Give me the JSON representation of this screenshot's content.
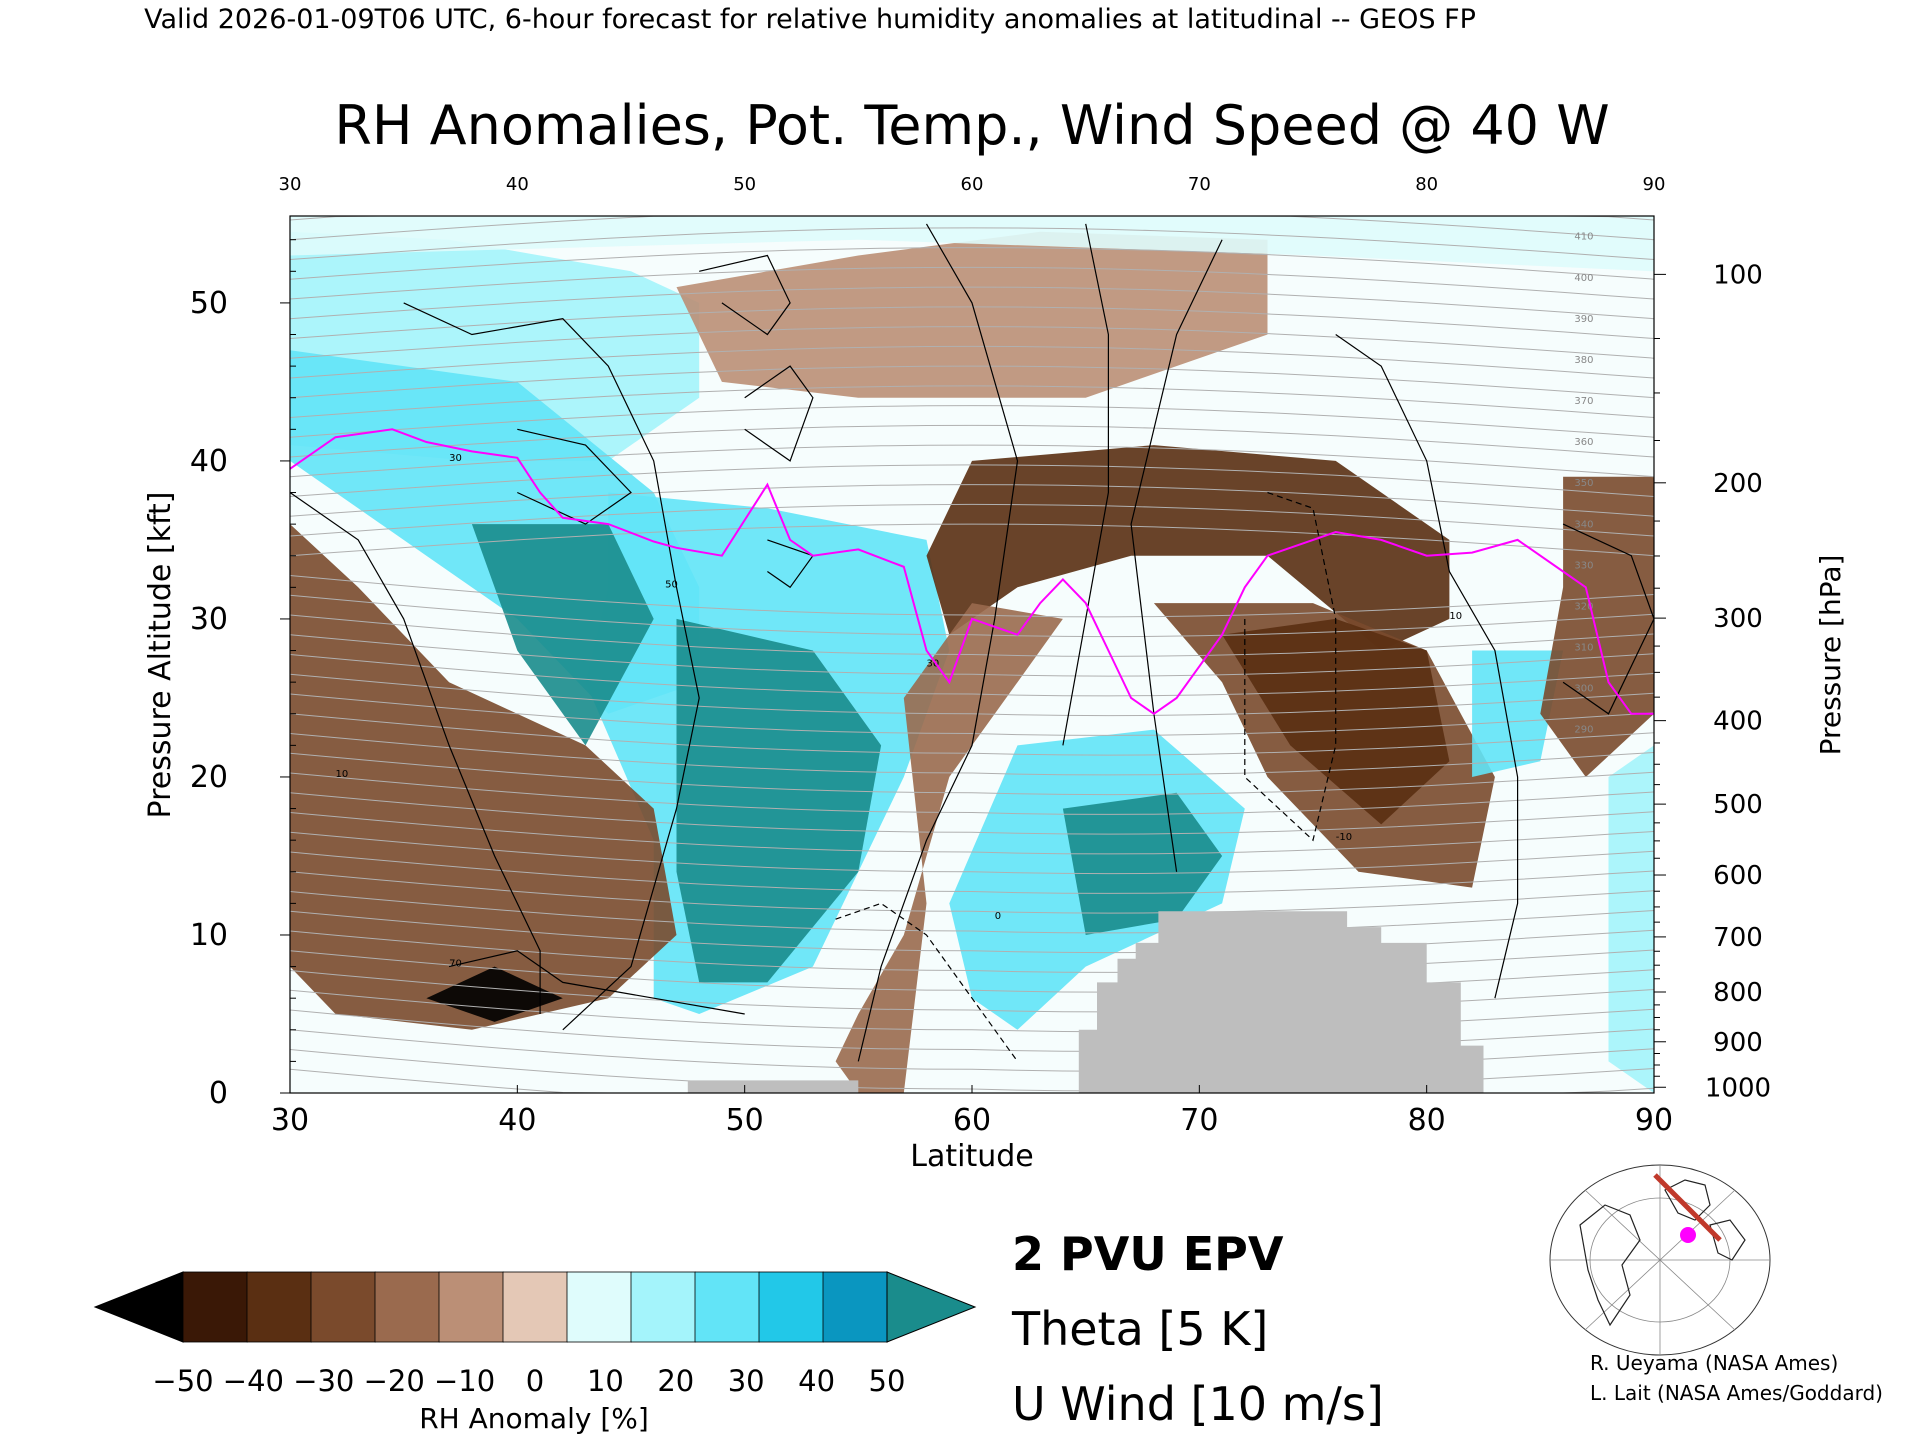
{
  "header": "Valid 2026-01-09T06 UTC, 6-hour forecast for relative humidity anomalies at latitudinal -- GEOS FP",
  "title": "RH Anomalies, Pot. Temp., Wind Speed @ 40 W",
  "xlabel": "Latitude",
  "ylabel_left": "Pressure Altitude [kft]",
  "ylabel_right": "Pressure [hPa]",
  "colorbar_label": "RH Anomaly [%]",
  "legend": {
    "epv": "2 PVU EPV",
    "theta": "Theta [5 K]",
    "uwind": "U Wind [10 m/s]"
  },
  "credits": [
    "R. Ueyama (NASA Ames)",
    "L. Lait (NASA Ames/Goddard)"
  ],
  "colors": {
    "epv": "#ff00ff",
    "theta": "#b0b0b0",
    "terrain": "#bebebe",
    "overflow_high": "#1a8c8c",
    "overflow_low": "#000000"
  },
  "chart_data": {
    "type": "heatmap",
    "title": "RH Anomalies, Pot. Temp., Wind Speed @ 40 W",
    "xlabel": "Latitude",
    "ylabel": "Pressure Altitude [kft]",
    "x_range": [
      30,
      90
    ],
    "y_range": [
      0,
      55.5
    ],
    "x_ticks": [
      30,
      40,
      50,
      60,
      70,
      80,
      90
    ],
    "y_ticks": [
      0,
      10,
      20,
      30,
      40,
      50
    ],
    "pressure_ticks": [
      100,
      200,
      300,
      400,
      500,
      600,
      700,
      800,
      900,
      1000
    ],
    "colorbar": {
      "ticks": [
        -50,
        -40,
        -30,
        -20,
        -10,
        0,
        10,
        20,
        30,
        40,
        50
      ],
      "colors": [
        "#3a1806",
        "#5a2f12",
        "#7a4a2c",
        "#9a6a4e",
        "#bb8f76",
        "#e4c8b6",
        "#dffcfc",
        "#a4f4fb",
        "#62e4f7",
        "#22c8e8",
        "#0a96c0"
      ]
    },
    "rh_regions": [
      {
        "anomaly": 20,
        "poly": [
          [
            30,
            54.5
          ],
          [
            37,
            54
          ],
          [
            45,
            52
          ],
          [
            48,
            50
          ],
          [
            48,
            44
          ],
          [
            44,
            40
          ],
          [
            38,
            40
          ],
          [
            30,
            41
          ]
        ]
      },
      {
        "anomaly": -10,
        "poly": [
          [
            47,
            51
          ],
          [
            55,
            53
          ],
          [
            63,
            54.5
          ],
          [
            73,
            54
          ],
          [
            73,
            48
          ],
          [
            65,
            44
          ],
          [
            55,
            44
          ],
          [
            49,
            45
          ]
        ]
      },
      {
        "anomaly": 10,
        "poly": [
          [
            30,
            55.5
          ],
          [
            90,
            55.5
          ],
          [
            90,
            52
          ],
          [
            75,
            53
          ],
          [
            55,
            54
          ],
          [
            30,
            53
          ]
        ]
      },
      {
        "anomaly": 30,
        "poly": [
          [
            30,
            47
          ],
          [
            40,
            45
          ],
          [
            46,
            38
          ],
          [
            48,
            32
          ],
          [
            48,
            26
          ],
          [
            44,
            24
          ],
          [
            40,
            30
          ],
          [
            36,
            34
          ],
          [
            32,
            38
          ],
          [
            30,
            40
          ]
        ]
      },
      {
        "anomaly": 30,
        "poly": [
          [
            44,
            38
          ],
          [
            51,
            37
          ],
          [
            58,
            35
          ],
          [
            59,
            28
          ],
          [
            57,
            20
          ],
          [
            53,
            8
          ],
          [
            48,
            5
          ],
          [
            46,
            6
          ],
          [
            46,
            16
          ],
          [
            43,
            26
          ],
          [
            44,
            32
          ]
        ]
      },
      {
        "anomaly": 50,
        "poly": [
          [
            38,
            36
          ],
          [
            44,
            36
          ],
          [
            46,
            30
          ],
          [
            43,
            22
          ],
          [
            40,
            28
          ]
        ]
      },
      {
        "anomaly": 50,
        "poly": [
          [
            47,
            30
          ],
          [
            53,
            28
          ],
          [
            56,
            22
          ],
          [
            55,
            14
          ],
          [
            51,
            7
          ],
          [
            48,
            7
          ],
          [
            47,
            14
          ]
        ]
      },
      {
        "anomaly": -40,
        "poly": [
          [
            60,
            40
          ],
          [
            68,
            41
          ],
          [
            76,
            40
          ],
          [
            81,
            35
          ],
          [
            81,
            30
          ],
          [
            78,
            28
          ],
          [
            73,
            34
          ],
          [
            67,
            34
          ],
          [
            62,
            32
          ],
          [
            59,
            29
          ],
          [
            58,
            34
          ]
        ]
      },
      {
        "anomaly": -30,
        "poly": [
          [
            68,
            31
          ],
          [
            71,
            26
          ],
          [
            73,
            20
          ],
          [
            77,
            14
          ],
          [
            82,
            13
          ],
          [
            83,
            20
          ],
          [
            80,
            28
          ],
          [
            75,
            31
          ]
        ]
      },
      {
        "anomaly": -40,
        "poly": [
          [
            71,
            29
          ],
          [
            74,
            22
          ],
          [
            78,
            17
          ],
          [
            81,
            21
          ],
          [
            80,
            28
          ],
          [
            76,
            30
          ]
        ]
      },
      {
        "anomaly": -20,
        "poly": [
          [
            57,
            25
          ],
          [
            60,
            31
          ],
          [
            64,
            30
          ],
          [
            62,
            26
          ],
          [
            59,
            20
          ],
          [
            57,
            10
          ],
          [
            55,
            5
          ],
          [
            54,
            2
          ],
          [
            55,
            0
          ],
          [
            57,
            0
          ],
          [
            58,
            12
          ]
        ]
      },
      {
        "anomaly": -30,
        "poly": [
          [
            30,
            36
          ],
          [
            33,
            32
          ],
          [
            37,
            26
          ],
          [
            43,
            22
          ],
          [
            46,
            18
          ],
          [
            47,
            10
          ],
          [
            44,
            6
          ],
          [
            38,
            4
          ],
          [
            32,
            5
          ],
          [
            30,
            8
          ]
        ]
      },
      {
        "anomaly": -50,
        "poly": [
          [
            36,
            6
          ],
          [
            39,
            8
          ],
          [
            42,
            6
          ],
          [
            39,
            4.5
          ]
        ]
      },
      {
        "anomaly": 30,
        "poly": [
          [
            62,
            22
          ],
          [
            68,
            23
          ],
          [
            72,
            18
          ],
          [
            71,
            12
          ],
          [
            65,
            8
          ],
          [
            62,
            4
          ],
          [
            60,
            6
          ],
          [
            59,
            12
          ]
        ]
      },
      {
        "anomaly": 50,
        "poly": [
          [
            64,
            18
          ],
          [
            69,
            19
          ],
          [
            71,
            15
          ],
          [
            69,
            11
          ],
          [
            65,
            10
          ]
        ]
      },
      {
        "anomaly": 30,
        "poly": [
          [
            82,
            28
          ],
          [
            86,
            28
          ],
          [
            85,
            21
          ],
          [
            82,
            20
          ]
        ]
      },
      {
        "anomaly": -30,
        "poly": [
          [
            86,
            39
          ],
          [
            90,
            39
          ],
          [
            90,
            24
          ],
          [
            87,
            20
          ],
          [
            85,
            24
          ],
          [
            86,
            32
          ]
        ]
      },
      {
        "anomaly": 20,
        "poly": [
          [
            88,
            20
          ],
          [
            90,
            22
          ],
          [
            90,
            0
          ],
          [
            88,
            2
          ]
        ]
      }
    ],
    "terrain": [
      [
        47.5,
        0
      ],
      [
        47.5,
        0.8
      ],
      [
        55,
        0.8
      ],
      [
        55,
        0
      ],
      [
        64.7,
        0
      ],
      [
        64.7,
        4
      ],
      [
        65.5,
        4
      ],
      [
        65.5,
        7
      ],
      [
        66.4,
        7
      ],
      [
        66.4,
        8.5
      ],
      [
        67.2,
        8.5
      ],
      [
        67.2,
        9.5
      ],
      [
        68.2,
        9.5
      ],
      [
        68.2,
        11.5
      ],
      [
        76.5,
        11.5
      ],
      [
        76.5,
        10.5
      ],
      [
        78,
        10.5
      ],
      [
        78,
        9.5
      ],
      [
        80,
        9.5
      ],
      [
        80,
        7
      ],
      [
        81.5,
        7
      ],
      [
        81.5,
        3
      ],
      [
        82.5,
        3
      ],
      [
        82.5,
        0
      ]
    ],
    "epv_2pvu": [
      [
        30,
        39.5
      ],
      [
        32,
        41.5
      ],
      [
        34.5,
        42
      ],
      [
        36,
        41.2
      ],
      [
        38,
        40.6
      ],
      [
        40,
        40.2
      ],
      [
        41,
        38
      ],
      [
        42,
        36.4
      ],
      [
        44,
        36
      ],
      [
        46,
        34.9
      ],
      [
        47,
        34.5
      ],
      [
        49,
        34
      ],
      [
        51,
        38.5
      ],
      [
        52,
        35
      ],
      [
        53,
        34
      ],
      [
        55,
        34.4
      ],
      [
        57,
        33.3
      ],
      [
        58,
        28
      ],
      [
        59,
        26
      ],
      [
        60,
        30
      ],
      [
        62,
        29
      ],
      [
        63,
        31
      ],
      [
        64,
        32.5
      ],
      [
        65,
        31
      ],
      [
        66,
        28
      ],
      [
        67,
        25
      ],
      [
        68,
        24
      ],
      [
        69,
        25
      ],
      [
        70,
        27
      ],
      [
        71,
        29
      ],
      [
        72,
        32
      ],
      [
        73,
        34
      ],
      [
        75,
        35
      ],
      [
        76,
        35.5
      ],
      [
        78,
        35
      ],
      [
        80,
        34
      ],
      [
        82,
        34.2
      ],
      [
        84,
        35
      ],
      [
        86,
        33
      ],
      [
        87,
        32
      ],
      [
        88,
        26
      ],
      [
        89,
        24
      ],
      [
        90,
        24
      ]
    ],
    "theta_labels": [
      410,
      400,
      390,
      380,
      370,
      360,
      350,
      340,
      330,
      320,
      310,
      300,
      290
    ],
    "uwind_labels": [
      -10,
      0,
      10,
      30,
      50,
      70
    ]
  }
}
